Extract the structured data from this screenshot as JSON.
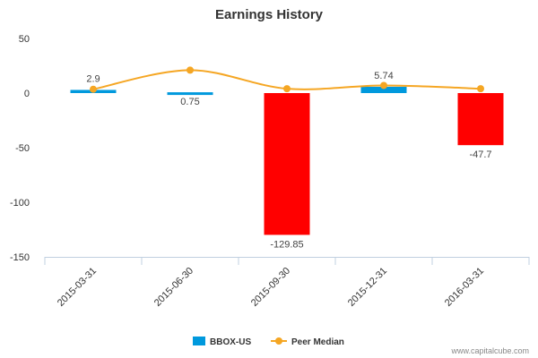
{
  "chart_data": {
    "type": "bar",
    "title": "Earnings History",
    "categories": [
      "2015-03-31",
      "2015-06-30",
      "2015-09-30",
      "2015-12-31",
      "2016-03-31"
    ],
    "series": [
      {
        "name": "BBOX-US",
        "type": "bar",
        "values": [
          2.9,
          0.75,
          -129.85,
          5.74,
          -47.7
        ],
        "labels": [
          "2.9",
          "0.75",
          "-129.85",
          "5.74",
          "-47.7"
        ],
        "colors": [
          "#0099DD",
          "#0099DD",
          "#FF0000",
          "#0099DD",
          "#FF0000"
        ]
      },
      {
        "name": "Peer Median",
        "type": "line",
        "values": [
          3.5,
          21,
          4,
          7,
          4
        ],
        "color": "#F5A623"
      }
    ],
    "yticks": [
      50,
      0,
      -50,
      -100,
      -150
    ],
    "ylim": [
      -150,
      50
    ],
    "xlabel": "",
    "ylabel": "",
    "legend_position": "bottom",
    "grid": false
  },
  "credit": "www.capitalcube.com",
  "colors": {
    "positive": "#0099DD",
    "negative": "#FF0000",
    "peer": "#F5A623",
    "axis": "#C0D0E0"
  }
}
